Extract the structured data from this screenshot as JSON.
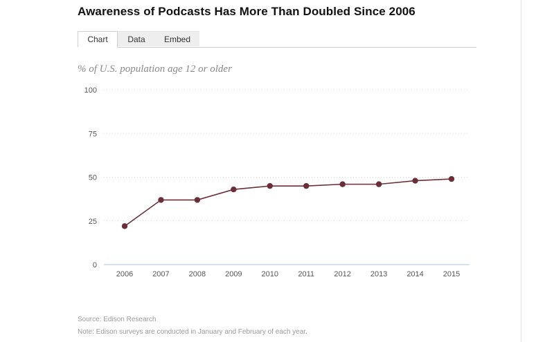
{
  "title": "Awareness of Podcasts Has More Than Doubled Since 2006",
  "tabs": [
    {
      "label": "Chart",
      "active": true
    },
    {
      "label": "Data",
      "active": false
    },
    {
      "label": "Embed",
      "active": false
    }
  ],
  "chart_data": {
    "type": "line",
    "title": "Awareness of Podcasts Has More Than Doubled Since 2006",
    "subtitle": "% of U.S. population age 12 or older",
    "xlabel": "",
    "ylabel": "",
    "categories": [
      "2006",
      "2007",
      "2008",
      "2009",
      "2010",
      "2011",
      "2012",
      "2013",
      "2014",
      "2015"
    ],
    "series": [
      {
        "values": [
          22,
          37,
          37,
          43,
          45,
          45,
          46,
          46,
          48,
          49
        ]
      }
    ],
    "ylim": [
      0,
      100
    ],
    "yticks": [
      "0",
      "25",
      "50",
      "75",
      "100"
    ],
    "grid": true,
    "colors": {
      "line": "#6b2e38",
      "grid": "#d9d9d9",
      "axis": "#a8c4d6"
    }
  },
  "footer": {
    "source": "Source: Edison Research",
    "note": "Note: Edison surveys are conducted in January and February of each year."
  }
}
